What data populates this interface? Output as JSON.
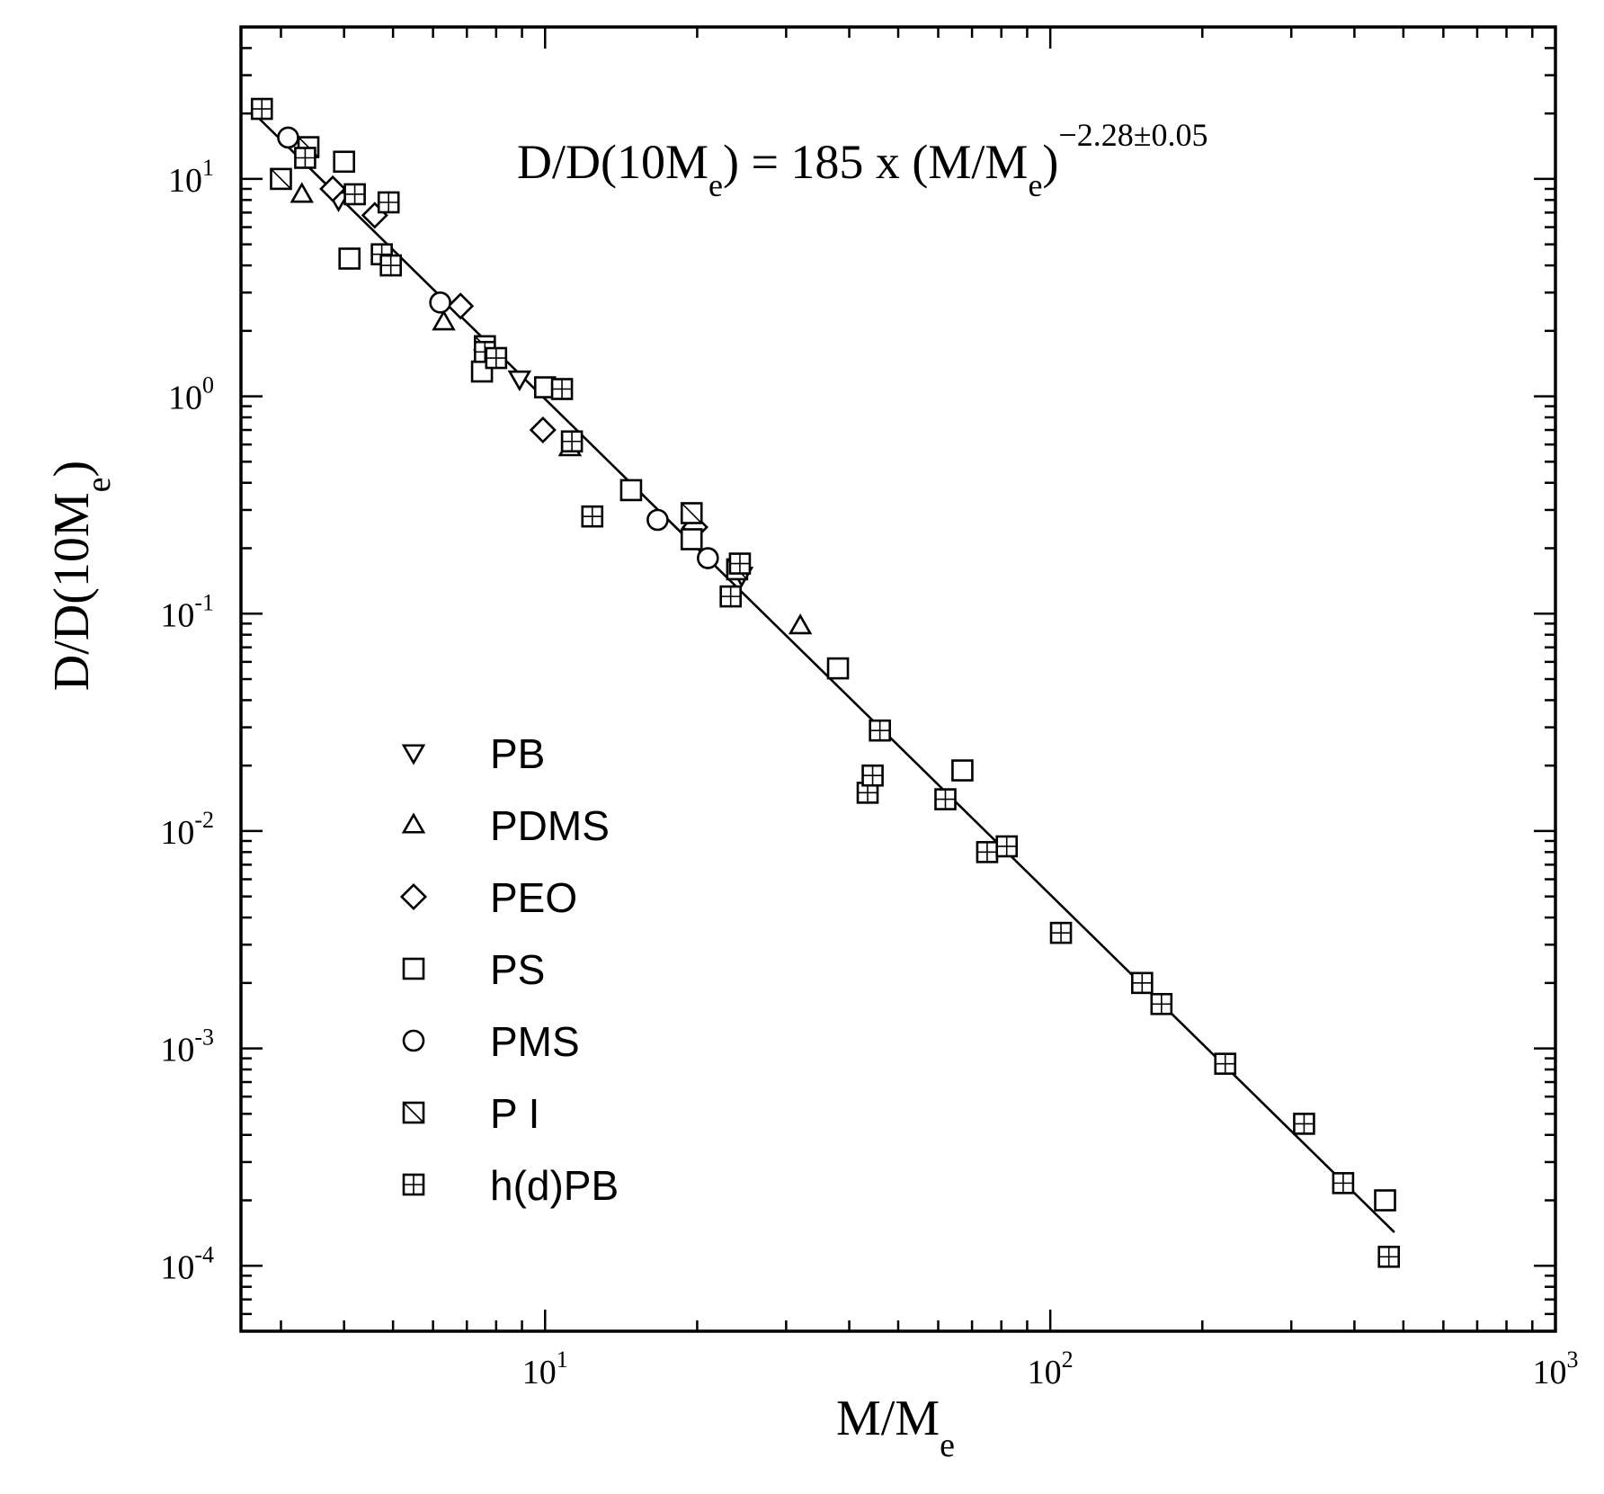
{
  "chart_data": {
    "type": "scatter",
    "title": "",
    "xlabel": {
      "main": "M/M",
      "sub": "e"
    },
    "ylabel": {
      "main": "D/D(10M",
      "sub": "e",
      "close": ")"
    },
    "xscale": "log",
    "yscale": "log",
    "xlim": [
      2.5,
      1000
    ],
    "ylim": [
      5e-05,
      50
    ],
    "x_ticks": [
      {
        "value": 10,
        "base": "10",
        "exp": "1"
      },
      {
        "value": 100,
        "base": "10",
        "exp": "2"
      },
      {
        "value": 1000,
        "base": "10",
        "exp": "3"
      }
    ],
    "y_ticks": [
      {
        "value": 0.0001,
        "base": "10",
        "exp": "-4"
      },
      {
        "value": 0.001,
        "base": "10",
        "exp": "-3"
      },
      {
        "value": 0.01,
        "base": "10",
        "exp": "-2"
      },
      {
        "value": 0.1,
        "base": "10",
        "exp": "-1"
      },
      {
        "value": 1,
        "base": "10",
        "exp": "0"
      },
      {
        "value": 10,
        "base": "10",
        "exp": "1"
      }
    ],
    "annotation": {
      "lhs_main": "D/D(10M",
      "lhs_sub": "e",
      "mid": ") = 185 x (M/M",
      "rhs_sub": "e",
      "close": ")",
      "exponent": "−2.28±0.05"
    },
    "fit_line": {
      "prefactor": 185,
      "exponent": -2.28,
      "x_range": [
        2.7,
        480
      ]
    },
    "legend_position": "lower-left",
    "series": [
      {
        "name": "PB",
        "marker": "triangle-down",
        "points": [
          [
            3.9,
            8.0
          ],
          [
            7.6,
            1.5
          ],
          [
            8.9,
            1.2
          ],
          [
            24.5,
            0.15
          ]
        ]
      },
      {
        "name": "PDMS",
        "marker": "triangle-up",
        "points": [
          [
            3.3,
            8.5
          ],
          [
            6.3,
            2.2
          ],
          [
            11.2,
            0.58
          ],
          [
            32.0,
            0.088
          ]
        ]
      },
      {
        "name": "PEO",
        "marker": "diamond",
        "points": [
          [
            3.8,
            9.0
          ],
          [
            4.6,
            6.8
          ],
          [
            6.8,
            2.6
          ],
          [
            9.9,
            0.7
          ],
          [
            19.8,
            0.25
          ]
        ]
      },
      {
        "name": "PS",
        "marker": "square",
        "points": [
          [
            4.1,
            4.3
          ],
          [
            4.0,
            12.0
          ],
          [
            7.5,
            1.3
          ],
          [
            10.0,
            1.1
          ],
          [
            14.8,
            0.37
          ],
          [
            19.5,
            0.22
          ],
          [
            38.0,
            0.056
          ],
          [
            67.0,
            0.019
          ],
          [
            460.0,
            0.0002
          ]
        ]
      },
      {
        "name": "PMS",
        "marker": "circle",
        "points": [
          [
            3.1,
            15.5
          ],
          [
            6.2,
            2.7
          ],
          [
            16.7,
            0.27
          ],
          [
            21.0,
            0.18
          ]
        ]
      },
      {
        "name": "P I",
        "marker": "square-slash",
        "points": [
          [
            3.0,
            10.0
          ],
          [
            3.4,
            14.0
          ],
          [
            7.6,
            1.7
          ],
          [
            19.5,
            0.29
          ],
          [
            24.0,
            0.16
          ]
        ]
      },
      {
        "name": "h(d)PB",
        "marker": "square-grid",
        "points": [
          [
            2.75,
            21.0
          ],
          [
            3.35,
            12.5
          ],
          [
            4.2,
            8.5
          ],
          [
            4.9,
            7.8
          ],
          [
            4.75,
            4.5
          ],
          [
            4.95,
            4.0
          ],
          [
            7.6,
            1.6
          ],
          [
            8.0,
            1.5
          ],
          [
            10.8,
            1.08
          ],
          [
            11.3,
            0.62
          ],
          [
            12.4,
            0.28
          ],
          [
            23.3,
            0.12
          ],
          [
            24.3,
            0.17
          ],
          [
            46.0,
            0.029
          ],
          [
            43.5,
            0.015
          ],
          [
            44.5,
            0.018
          ],
          [
            62.0,
            0.014
          ],
          [
            75.0,
            0.008
          ],
          [
            82.0,
            0.0085
          ],
          [
            105.0,
            0.0034
          ],
          [
            152.0,
            0.002
          ],
          [
            166.0,
            0.0016
          ],
          [
            222.0,
            0.00085
          ],
          [
            318.0,
            0.00045
          ],
          [
            380.0,
            0.00024
          ],
          [
            468.0,
            0.00011
          ]
        ]
      }
    ]
  }
}
